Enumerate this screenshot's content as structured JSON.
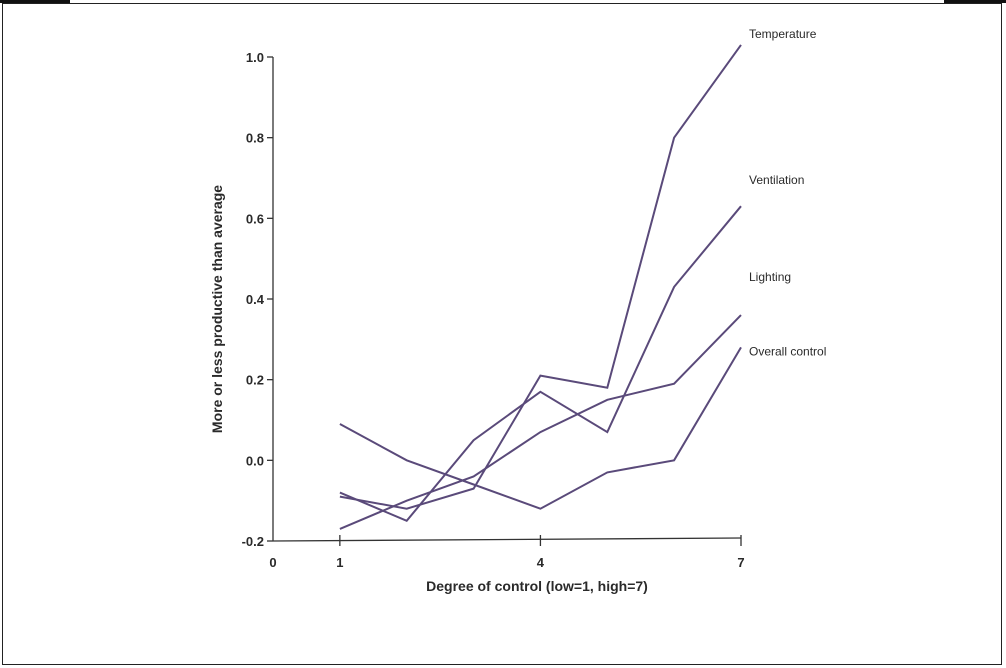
{
  "chart_data": {
    "type": "line",
    "xlabel": "Degree of control (low=1, high=7)",
    "ylabel": "More or less productive than average",
    "xlim": [
      0,
      7
    ],
    "ylim": [
      -0.2,
      1.0
    ],
    "x_ticks": [
      0,
      1,
      4,
      7
    ],
    "y_ticks": [
      "-0.2",
      "0.0",
      "0.2",
      "0.4",
      "0.6",
      "0.8",
      "1.0"
    ],
    "grid": false,
    "legend": "inline labels at right end of lines",
    "line_color": "#5a4a7a",
    "series": [
      {
        "name": "Temperature",
        "x": [
          1,
          2,
          3,
          4,
          5,
          6,
          7
        ],
        "y": [
          -0.09,
          -0.12,
          -0.07,
          0.21,
          0.18,
          0.8,
          1.03
        ]
      },
      {
        "name": "Ventilation",
        "x": [
          1,
          2,
          3,
          4,
          5,
          6,
          7
        ],
        "y": [
          -0.08,
          -0.15,
          0.05,
          0.17,
          0.07,
          0.43,
          0.63
        ]
      },
      {
        "name": "Lighting",
        "x": [
          1,
          2,
          3,
          4,
          5,
          6,
          7
        ],
        "y": [
          -0.17,
          -0.1,
          -0.04,
          0.07,
          0.15,
          0.19,
          0.36
        ]
      },
      {
        "name": "Overall control",
        "x": [
          1,
          2,
          3,
          4,
          5,
          6,
          7
        ],
        "y": [
          0.09,
          0.0,
          -0.06,
          -0.12,
          -0.03,
          0.0,
          0.28
        ]
      }
    ]
  }
}
